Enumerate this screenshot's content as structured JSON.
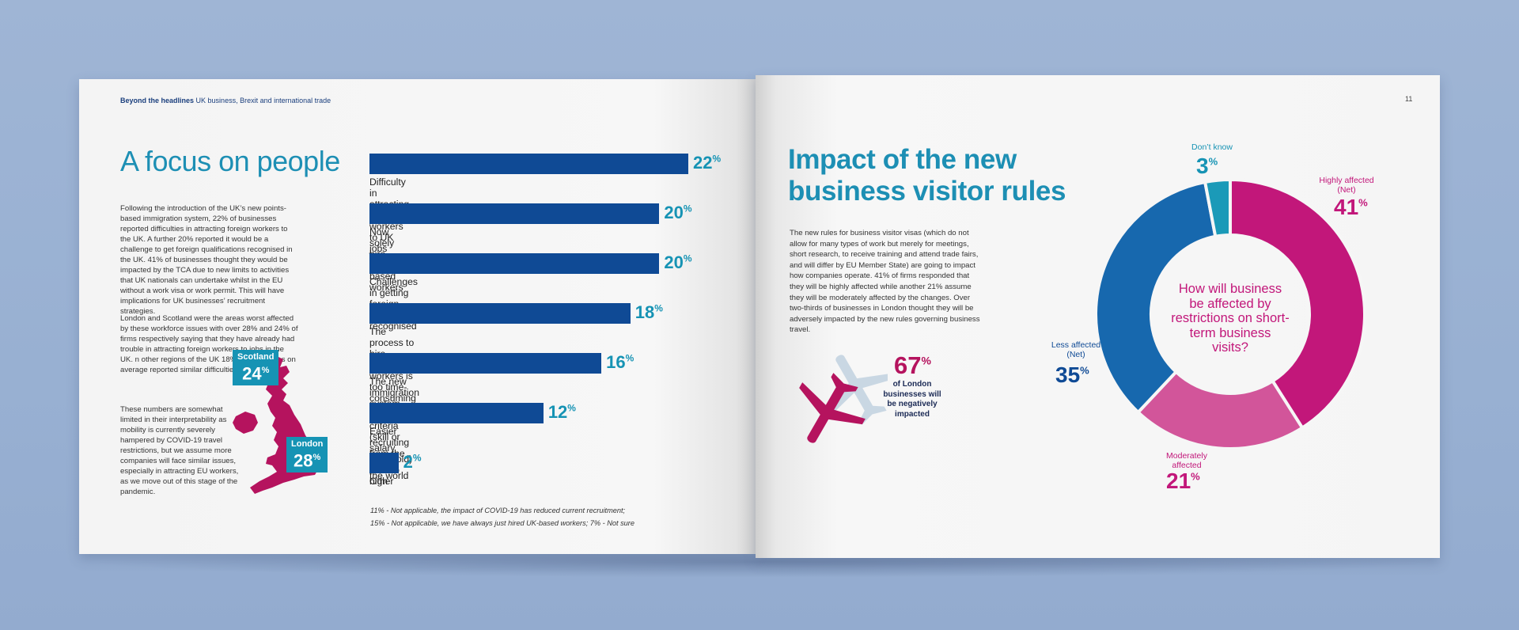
{
  "running_head": {
    "bold": "Beyond the headlines",
    "rest": "UK business, Brexit and international trade"
  },
  "page_number": "11",
  "left": {
    "heading": "A focus on people",
    "para1": "Following the introduction of the UK’s new points-based immigration system, 22% of businesses reported difficulties in attracting foreign workers to the UK. A further 20% reported it would be a challenge to get foreign qualifications recognised in the UK. 41% of businesses thought they would be impacted by the TCA due to new limits to activities that UK nationals can undertake whilst in the EU without a work visa or work permit. This will have implications for UK businesses’ recruitment strategies.",
    "para2": "London and Scotland were the areas worst affected by these workforce issues with over 28% and 24% of firms respectively saying that they have already had trouble in attracting foreign workers to jobs in the UK. n other regions of the UK 18% of businesses on average reported similar difficulties.",
    "para3": "These numbers are somewhat limited in their interpretability as mobility is currently severely hampered by COVID-19 travel restrictions, but we assume more companies will face similar issues, especially in attracting EU workers, as we move out of this stage of the pandemic.",
    "callouts": {
      "scotland": {
        "name": "Scotland",
        "value": "24",
        "unit": "%"
      },
      "london": {
        "name": "London",
        "value": "28",
        "unit": "%"
      }
    },
    "footnotes": [
      "11% - Not applicable, the impact of COVID-19 has reduced current recruitment;",
      "15% - Not applicable, we have always just hired UK-based workers; 7% - Not sure"
    ]
  },
  "right": {
    "heading_line1": "Impact of the new",
    "heading_line2": "business visitor rules",
    "para": "The new rules for business visitor visas (which do not allow for many types of work but merely for meetings, short research, to receive training and attend trade fairs, and will differ by EU Member State) are going to impact how companies operate. 41% of firms responded that they will be highly affected while another 21% assume they will be moderately affected by the changes. Over two-thirds of businesses in London thought they will be adversely impacted by the new rules governing business travel.",
    "stat": {
      "value": "67",
      "unit": "%",
      "text": "of London businesses will be negatively impacted"
    },
    "donut_question": "How will business be affected by restrictions on short-term business visits?"
  },
  "colors": {
    "navy": "#0f4a95",
    "teal": "#1693b4",
    "magenta": "#c2177a",
    "pink": "#d2559a",
    "blue": "#1768ae",
    "cyan": "#1b9ab8"
  },
  "chart_data": [
    {
      "type": "bar",
      "orientation": "horizontal",
      "categories": [
        "Difficulty in attracting foreign workers to UK jobs",
        "Now solely hire UK-based workers",
        "Challenges in getting foreign qualifications recognised",
        "The process to hire foreign workers is too time-consuming and costly",
        "The new immigration system eligibility criteria (skill or salary threshold) are too high",
        "Easier recruiting from the rest of the world",
        "Other"
      ],
      "values": [
        22,
        20,
        20,
        18,
        16,
        12,
        2
      ],
      "value_unit": "%",
      "xlim": [
        0,
        22
      ]
    },
    {
      "type": "pie",
      "donut": true,
      "slices": [
        {
          "label": "Highly affected (Net)",
          "value": 41,
          "color": "#c2177a"
        },
        {
          "label": "Moderately affected",
          "value": 21,
          "color": "#d2559a"
        },
        {
          "label": "Less affected (Net)",
          "value": 35,
          "color": "#1768ae"
        },
        {
          "label": "Don’t know",
          "value": 3,
          "color": "#1b9ab8"
        }
      ],
      "value_unit": "%"
    }
  ]
}
